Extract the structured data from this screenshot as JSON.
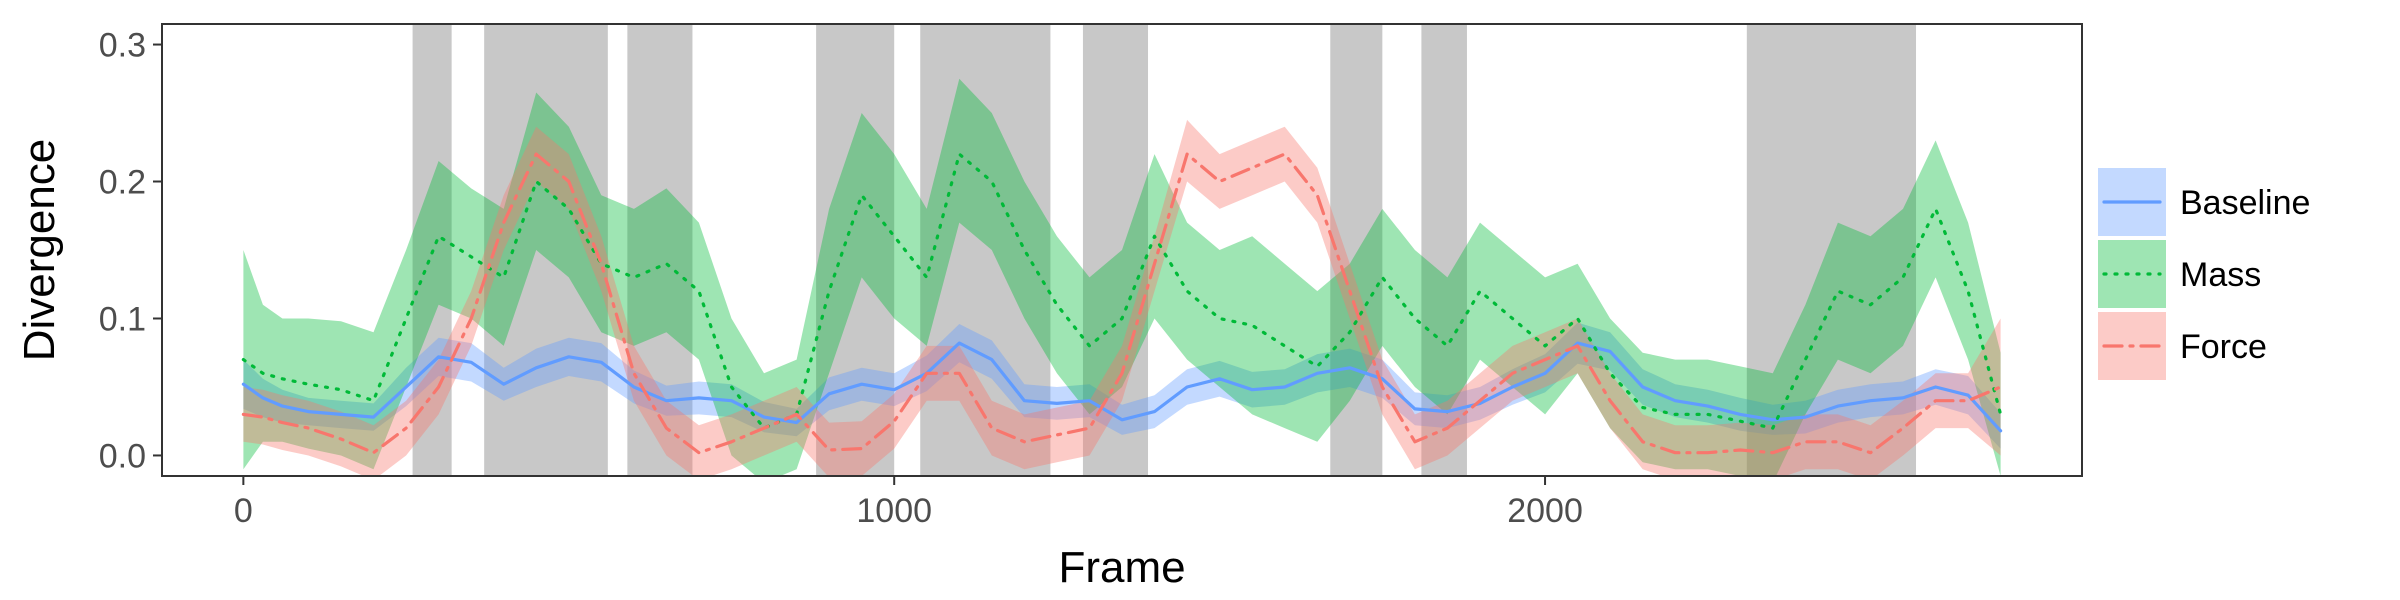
{
  "chart_data": {
    "type": "line",
    "title": "",
    "xlabel": "Frame",
    "ylabel": "Divergence",
    "xlim": [
      -125,
      2825
    ],
    "ylim": [
      -0.015,
      0.315
    ],
    "x_ticks": [
      0,
      1000,
      2000
    ],
    "x_tick_labels": [
      "0",
      "1000",
      "2000"
    ],
    "y_ticks": [
      0.0,
      0.1,
      0.2,
      0.3
    ],
    "y_tick_labels": [
      "0.0",
      "0.1",
      "0.2",
      "0.3"
    ],
    "grid": false,
    "legend_position": "right",
    "shaded_regions": [
      [
        260,
        320
      ],
      [
        370,
        560
      ],
      [
        590,
        690
      ],
      [
        880,
        1000
      ],
      [
        1040,
        1240
      ],
      [
        1290,
        1390
      ],
      [
        1670,
        1750
      ],
      [
        1810,
        1880
      ],
      [
        2310,
        2570
      ]
    ],
    "x": [
      0,
      30,
      60,
      100,
      150,
      200,
      250,
      300,
      350,
      400,
      450,
      500,
      550,
      600,
      650,
      700,
      750,
      800,
      850,
      900,
      950,
      1000,
      1050,
      1100,
      1150,
      1200,
      1250,
      1300,
      1350,
      1400,
      1450,
      1500,
      1550,
      1600,
      1650,
      1700,
      1750,
      1800,
      1850,
      1900,
      1950,
      2000,
      2050,
      2100,
      2150,
      2200,
      2250,
      2300,
      2350,
      2400,
      2450,
      2500,
      2550,
      2600,
      2650,
      2700
    ],
    "series": [
      {
        "name": "Baseline",
        "color": "#619CFF",
        "dash": "solid",
        "values": [
          0.052,
          0.042,
          0.036,
          0.032,
          0.03,
          0.028,
          0.05,
          0.072,
          0.068,
          0.052,
          0.064,
          0.072,
          0.068,
          0.05,
          0.04,
          0.042,
          0.04,
          0.028,
          0.024,
          0.045,
          0.052,
          0.048,
          0.06,
          0.082,
          0.07,
          0.04,
          0.038,
          0.04,
          0.026,
          0.032,
          0.05,
          0.056,
          0.048,
          0.05,
          0.06,
          0.064,
          0.056,
          0.034,
          0.032,
          0.038,
          0.05,
          0.06,
          0.082,
          0.076,
          0.05,
          0.04,
          0.036,
          0.03,
          0.026,
          0.028,
          0.036,
          0.04,
          0.042,
          0.05,
          0.044,
          0.018
        ],
        "lower": [
          0.034,
          0.028,
          0.024,
          0.022,
          0.02,
          0.018,
          0.036,
          0.058,
          0.054,
          0.04,
          0.05,
          0.058,
          0.054,
          0.038,
          0.029,
          0.03,
          0.028,
          0.017,
          0.014,
          0.033,
          0.04,
          0.036,
          0.047,
          0.068,
          0.056,
          0.028,
          0.026,
          0.028,
          0.015,
          0.02,
          0.037,
          0.043,
          0.035,
          0.037,
          0.046,
          0.05,
          0.042,
          0.022,
          0.02,
          0.026,
          0.037,
          0.046,
          0.067,
          0.062,
          0.037,
          0.028,
          0.024,
          0.018,
          0.015,
          0.016,
          0.024,
          0.028,
          0.03,
          0.037,
          0.03,
          0.005
        ],
        "upper": [
          0.07,
          0.056,
          0.048,
          0.042,
          0.04,
          0.038,
          0.064,
          0.086,
          0.082,
          0.064,
          0.078,
          0.086,
          0.082,
          0.062,
          0.051,
          0.054,
          0.052,
          0.039,
          0.034,
          0.057,
          0.064,
          0.06,
          0.073,
          0.096,
          0.084,
          0.052,
          0.05,
          0.052,
          0.037,
          0.044,
          0.063,
          0.069,
          0.061,
          0.063,
          0.074,
          0.078,
          0.07,
          0.046,
          0.044,
          0.05,
          0.063,
          0.074,
          0.097,
          0.09,
          0.063,
          0.052,
          0.048,
          0.042,
          0.037,
          0.04,
          0.048,
          0.052,
          0.054,
          0.063,
          0.058,
          0.031
        ]
      },
      {
        "name": "Mass",
        "color": "#00BA38",
        "dash": "dotted",
        "values": [
          0.07,
          0.06,
          0.056,
          0.052,
          0.048,
          0.04,
          0.1,
          0.16,
          0.145,
          0.13,
          0.2,
          0.18,
          0.14,
          0.13,
          0.14,
          0.12,
          0.05,
          0.02,
          0.03,
          0.12,
          0.19,
          0.16,
          0.13,
          0.22,
          0.2,
          0.15,
          0.11,
          0.08,
          0.1,
          0.16,
          0.12,
          0.1,
          0.095,
          0.08,
          0.065,
          0.09,
          0.13,
          0.1,
          0.08,
          0.12,
          0.1,
          0.08,
          0.1,
          0.06,
          0.035,
          0.03,
          0.03,
          0.025,
          0.02,
          0.07,
          0.12,
          0.11,
          0.13,
          0.18,
          0.12,
          0.03
        ],
        "lower": [
          -0.01,
          0.01,
          0.01,
          0.005,
          0.0,
          -0.01,
          0.05,
          0.11,
          0.1,
          0.08,
          0.15,
          0.13,
          0.09,
          0.08,
          0.09,
          0.07,
          0.0,
          -0.02,
          -0.01,
          0.06,
          0.13,
          0.1,
          0.08,
          0.17,
          0.15,
          0.1,
          0.06,
          0.03,
          0.05,
          0.1,
          0.07,
          0.05,
          0.03,
          0.02,
          0.01,
          0.04,
          0.08,
          0.05,
          0.03,
          0.07,
          0.05,
          0.03,
          0.06,
          0.02,
          -0.005,
          -0.01,
          -0.01,
          -0.015,
          -0.02,
          0.03,
          0.07,
          0.06,
          0.08,
          0.13,
          0.07,
          -0.015
        ],
        "upper": [
          0.15,
          0.11,
          0.1,
          0.1,
          0.098,
          0.09,
          0.15,
          0.215,
          0.195,
          0.18,
          0.265,
          0.24,
          0.19,
          0.18,
          0.195,
          0.17,
          0.1,
          0.06,
          0.07,
          0.18,
          0.25,
          0.22,
          0.18,
          0.275,
          0.25,
          0.2,
          0.16,
          0.13,
          0.15,
          0.22,
          0.17,
          0.15,
          0.16,
          0.14,
          0.12,
          0.14,
          0.18,
          0.15,
          0.13,
          0.17,
          0.15,
          0.13,
          0.14,
          0.1,
          0.075,
          0.07,
          0.07,
          0.065,
          0.06,
          0.11,
          0.17,
          0.16,
          0.18,
          0.23,
          0.17,
          0.075
        ]
      },
      {
        "name": "Force",
        "color": "#F8766D",
        "dash": "dashdot",
        "values": [
          0.03,
          0.028,
          0.024,
          0.02,
          0.012,
          0.002,
          0.02,
          0.05,
          0.1,
          0.17,
          0.22,
          0.2,
          0.14,
          0.06,
          0.02,
          0.002,
          0.01,
          0.02,
          0.03,
          0.004,
          0.005,
          0.025,
          0.06,
          0.06,
          0.02,
          0.01,
          0.015,
          0.02,
          0.06,
          0.14,
          0.22,
          0.2,
          0.21,
          0.22,
          0.19,
          0.12,
          0.05,
          0.01,
          0.02,
          0.04,
          0.06,
          0.07,
          0.08,
          0.04,
          0.01,
          0.002,
          0.002,
          0.004,
          0.002,
          0.01,
          0.01,
          0.002,
          0.02,
          0.04,
          0.04,
          0.05
        ],
        "lower": [
          0.01,
          0.008,
          0.004,
          0.0,
          -0.008,
          -0.018,
          0.0,
          0.03,
          0.08,
          0.15,
          0.2,
          0.18,
          0.12,
          0.04,
          0.0,
          -0.018,
          -0.01,
          0.0,
          0.01,
          -0.016,
          -0.015,
          0.005,
          0.04,
          0.04,
          0.0,
          -0.01,
          -0.005,
          0.0,
          0.04,
          0.12,
          0.2,
          0.18,
          0.19,
          0.2,
          0.17,
          0.1,
          0.03,
          -0.01,
          0.0,
          0.02,
          0.04,
          0.05,
          0.06,
          0.02,
          -0.01,
          -0.018,
          -0.018,
          -0.016,
          -0.018,
          -0.01,
          -0.01,
          -0.018,
          0.0,
          0.02,
          0.02,
          0.0
        ],
        "upper": [
          0.05,
          0.048,
          0.044,
          0.04,
          0.032,
          0.022,
          0.04,
          0.07,
          0.12,
          0.19,
          0.24,
          0.22,
          0.16,
          0.08,
          0.04,
          0.022,
          0.03,
          0.04,
          0.05,
          0.024,
          0.025,
          0.045,
          0.08,
          0.08,
          0.04,
          0.03,
          0.035,
          0.04,
          0.08,
          0.16,
          0.245,
          0.22,
          0.23,
          0.24,
          0.21,
          0.14,
          0.07,
          0.03,
          0.04,
          0.06,
          0.08,
          0.09,
          0.1,
          0.06,
          0.03,
          0.022,
          0.022,
          0.024,
          0.022,
          0.03,
          0.03,
          0.022,
          0.04,
          0.06,
          0.06,
          0.1
        ]
      }
    ]
  }
}
